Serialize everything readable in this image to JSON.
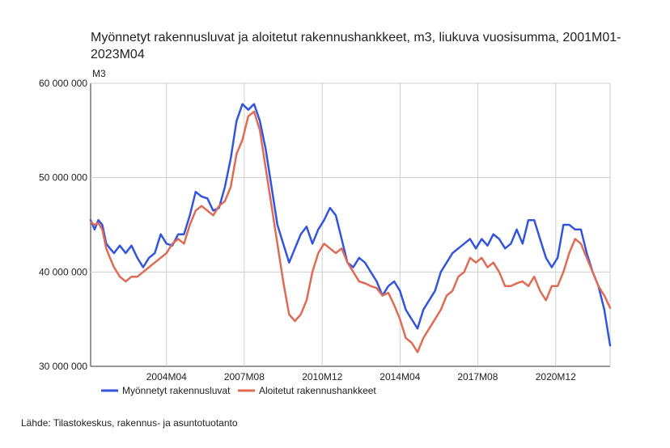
{
  "chart_data": {
    "type": "line",
    "title": "Myönnetyt rakennusluvat ja aloitetut rakennushankkeet, m3, liukuva vuosisumma, 2001M01-2023M04",
    "ylabel": "M3",
    "ylim": [
      30000000,
      60000000
    ],
    "yticks": [
      30000000,
      40000000,
      50000000,
      60000000
    ],
    "ytick_labels": [
      "30 000 000",
      "40 000 000",
      "50 000 000",
      "60 000 000"
    ],
    "xlim": [
      2001.0,
      2023.25
    ],
    "xticks": [
      {
        "label": "2004M04",
        "x": 2004.25
      },
      {
        "label": "2007M08",
        "x": 2007.58
      },
      {
        "label": "2010M12",
        "x": 2010.92
      },
      {
        "label": "2014M04",
        "x": 2014.25
      },
      {
        "label": "2017M08",
        "x": 2017.58
      },
      {
        "label": "2020M12",
        "x": 2020.92
      }
    ],
    "grid": true,
    "legend_position": "bottom",
    "series": [
      {
        "name": "Myönnetyt rakennusluvat",
        "color": "#3355dd",
        "x": [
          2001.0,
          2001.17,
          2001.33,
          2001.5,
          2001.67,
          2001.83,
          2002.0,
          2002.25,
          2002.5,
          2002.75,
          2003.0,
          2003.25,
          2003.5,
          2003.75,
          2004.0,
          2004.25,
          2004.5,
          2004.75,
          2005.0,
          2005.25,
          2005.5,
          2005.75,
          2006.0,
          2006.25,
          2006.5,
          2006.75,
          2007.0,
          2007.25,
          2007.5,
          2007.75,
          2008.0,
          2008.25,
          2008.5,
          2008.75,
          2009.0,
          2009.25,
          2009.5,
          2009.75,
          2010.0,
          2010.25,
          2010.5,
          2010.75,
          2011.0,
          2011.25,
          2011.5,
          2011.75,
          2012.0,
          2012.25,
          2012.5,
          2012.75,
          2013.0,
          2013.25,
          2013.5,
          2013.75,
          2014.0,
          2014.25,
          2014.5,
          2014.75,
          2015.0,
          2015.25,
          2015.5,
          2015.75,
          2016.0,
          2016.25,
          2016.5,
          2016.75,
          2017.0,
          2017.25,
          2017.5,
          2017.75,
          2018.0,
          2018.25,
          2018.5,
          2018.75,
          2019.0,
          2019.25,
          2019.5,
          2019.75,
          2020.0,
          2020.25,
          2020.5,
          2020.75,
          2021.0,
          2021.25,
          2021.5,
          2021.75,
          2022.0,
          2022.25,
          2022.5,
          2022.75,
          2023.0,
          2023.25
        ],
        "values": [
          45500000,
          44500000,
          45500000,
          45000000,
          43000000,
          42500000,
          42000000,
          42800000,
          42000000,
          42800000,
          41500000,
          40500000,
          41500000,
          42000000,
          44000000,
          43000000,
          42800000,
          44000000,
          44000000,
          46000000,
          48500000,
          48000000,
          47800000,
          46500000,
          46800000,
          49000000,
          52000000,
          56000000,
          57800000,
          57200000,
          57800000,
          56000000,
          53000000,
          49000000,
          45000000,
          43000000,
          41000000,
          42500000,
          44000000,
          44800000,
          43000000,
          44500000,
          45500000,
          46800000,
          46000000,
          43500000,
          41000000,
          40500000,
          41500000,
          41000000,
          40000000,
          39000000,
          37500000,
          38500000,
          39000000,
          38000000,
          36000000,
          35000000,
          34000000,
          36000000,
          37000000,
          38000000,
          40000000,
          41000000,
          42000000,
          42500000,
          43000000,
          43500000,
          42500000,
          43500000,
          42800000,
          44000000,
          43500000,
          42500000,
          43000000,
          44500000,
          43000000,
          45500000,
          45500000,
          43500000,
          41500000,
          40500000,
          41500000,
          45000000,
          45000000,
          44500000,
          44500000,
          42000000,
          40000000,
          38500000,
          36000000,
          32200000
        ]
      },
      {
        "name": "Aloitetut rakennushankkeet",
        "color": "#e06b55",
        "x": [
          2001.0,
          2001.17,
          2001.33,
          2001.5,
          2001.67,
          2001.83,
          2002.0,
          2002.25,
          2002.5,
          2002.75,
          2003.0,
          2003.25,
          2003.5,
          2003.75,
          2004.0,
          2004.25,
          2004.5,
          2004.75,
          2005.0,
          2005.25,
          2005.5,
          2005.75,
          2006.0,
          2006.25,
          2006.5,
          2006.75,
          2007.0,
          2007.25,
          2007.5,
          2007.75,
          2008.0,
          2008.25,
          2008.5,
          2008.75,
          2009.0,
          2009.25,
          2009.5,
          2009.75,
          2010.0,
          2010.25,
          2010.5,
          2010.75,
          2011.0,
          2011.25,
          2011.5,
          2011.75,
          2012.0,
          2012.25,
          2012.5,
          2012.75,
          2013.0,
          2013.25,
          2013.5,
          2013.75,
          2014.0,
          2014.25,
          2014.5,
          2014.75,
          2015.0,
          2015.25,
          2015.5,
          2015.75,
          2016.0,
          2016.25,
          2016.5,
          2016.75,
          2017.0,
          2017.25,
          2017.5,
          2017.75,
          2018.0,
          2018.25,
          2018.5,
          2018.75,
          2019.0,
          2019.25,
          2019.5,
          2019.75,
          2020.0,
          2020.25,
          2020.5,
          2020.75,
          2021.0,
          2021.25,
          2021.5,
          2021.75,
          2022.0,
          2022.25,
          2022.5,
          2022.75,
          2023.0,
          2023.25
        ],
        "values": [
          45300000,
          45000000,
          45200000,
          44500000,
          42500000,
          41500000,
          40500000,
          39500000,
          39000000,
          39500000,
          39500000,
          40000000,
          40500000,
          41000000,
          41500000,
          42000000,
          43000000,
          43500000,
          43000000,
          45000000,
          46500000,
          47000000,
          46500000,
          46000000,
          47000000,
          47500000,
          49000000,
          52500000,
          54000000,
          56500000,
          57000000,
          55000000,
          51000000,
          47000000,
          43000000,
          39000000,
          35500000,
          34800000,
          35500000,
          37000000,
          40000000,
          42000000,
          43000000,
          42500000,
          42000000,
          42500000,
          41000000,
          40000000,
          39000000,
          38800000,
          38500000,
          38300000,
          37500000,
          37800000,
          36500000,
          35000000,
          33000000,
          32500000,
          31500000,
          33000000,
          34000000,
          35000000,
          36000000,
          37500000,
          38000000,
          39500000,
          40000000,
          41500000,
          41000000,
          41500000,
          40500000,
          41000000,
          40000000,
          38500000,
          38500000,
          38800000,
          39000000,
          38500000,
          39500000,
          38000000,
          37000000,
          38500000,
          38500000,
          40000000,
          42000000,
          43500000,
          43000000,
          41500000,
          40000000,
          38500000,
          37500000,
          36200000
        ]
      }
    ]
  },
  "footer": {
    "source": "Lähde: Tilastokeskus, rakennus- ja asuntotuotanto"
  }
}
